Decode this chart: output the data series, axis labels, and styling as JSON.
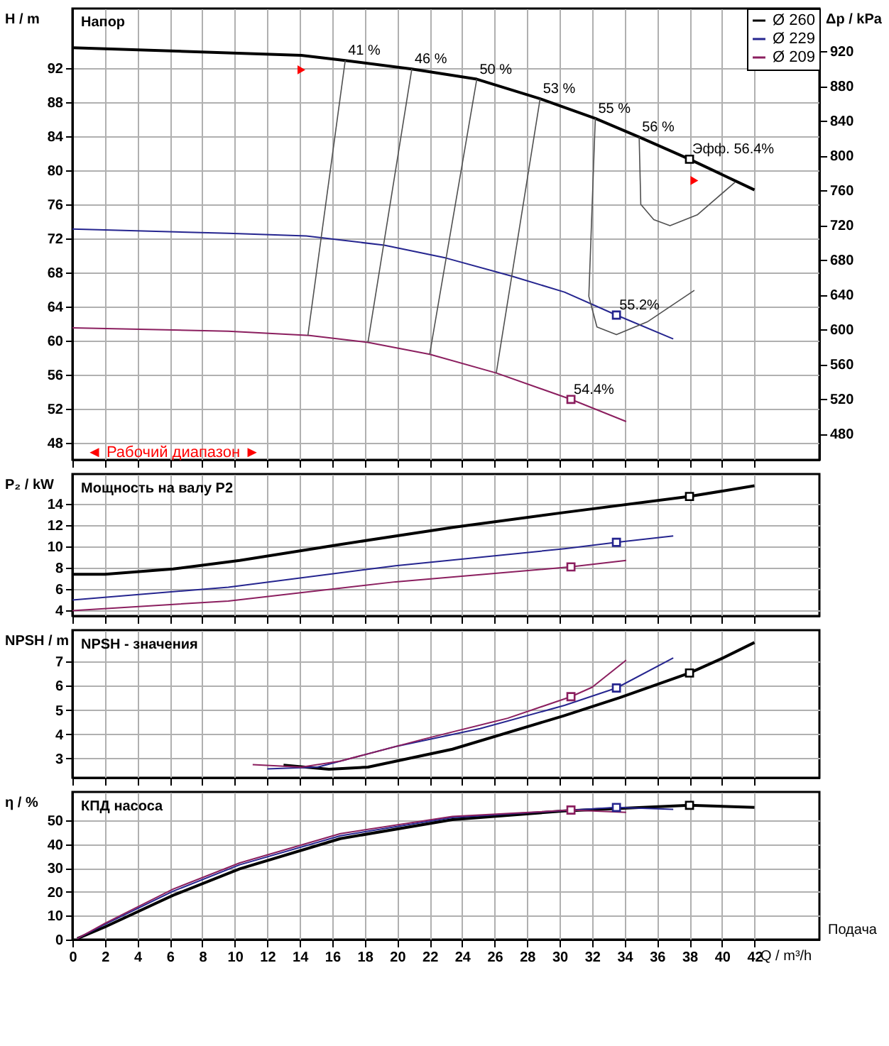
{
  "chart_data": [
    {
      "type": "line",
      "title": "Напор",
      "ylabel": "H / m",
      "y2label": "Δp / kPa",
      "xlim": [
        0,
        46
      ],
      "xticks": [
        0,
        2,
        4,
        6,
        8,
        10,
        12,
        14,
        16,
        18,
        20,
        22,
        24,
        26,
        28,
        30,
        32,
        34,
        36,
        38,
        40,
        42
      ],
      "ylim": [
        46,
        99
      ],
      "yticks": [
        48,
        52,
        56,
        60,
        64,
        68,
        72,
        76,
        80,
        84,
        88,
        92
      ],
      "y2lim": [
        450,
        969
      ],
      "y2ticks": [
        480,
        520,
        560,
        600,
        640,
        680,
        720,
        760,
        800,
        840,
        880,
        920
      ],
      "grid": true,
      "legend": "top right",
      "tick_labels": "y",
      "series": [
        {
          "name": "Ø 260",
          "color": "#000000",
          "x": [
            0,
            14.1,
            16.8,
            20.9,
            24.9,
            28.8,
            32.2,
            34.9,
            38.0,
            42.0
          ],
          "values": [
            94.4,
            93.5,
            92.9,
            91.9,
            90.7,
            88.4,
            86.1,
            83.9,
            81.3,
            77.7
          ]
        },
        {
          "name": "Ø 229",
          "color": "#25258f",
          "x": [
            0,
            9.6,
            14.4,
            19.2,
            23.0,
            27.0,
            30.3,
            33.5,
            37.0
          ],
          "values": [
            73.1,
            72.6,
            72.3,
            71.2,
            69.7,
            67.6,
            65.7,
            63.0,
            60.2
          ]
        },
        {
          "name": "Ø 209",
          "color": "#8b1f5f",
          "x": [
            0,
            9.6,
            14.6,
            18.2,
            22.0,
            26.1,
            30.7,
            34.1
          ],
          "values": [
            61.5,
            61.1,
            60.6,
            59.8,
            58.4,
            56.2,
            53.1,
            50.5
          ]
        },
        {
          "color": "#505050",
          "x": [
            16.8,
            14.5
          ],
          "values": [
            92.9,
            60.6
          ]
        },
        {
          "color": "#505050",
          "x": [
            20.9,
            18.2
          ],
          "values": [
            91.9,
            59.8
          ]
        },
        {
          "color": "#505050",
          "x": [
            24.9,
            22.0
          ],
          "values": [
            90.7,
            58.4
          ]
        },
        {
          "color": "#505050",
          "x": [
            28.8,
            26.1
          ],
          "values": [
            88.4,
            56.2
          ]
        },
        {
          "color": "#505050",
          "x": [
            32.2,
            31.8,
            32.3,
            33.5,
            35.4,
            38.3
          ],
          "values": [
            86.1,
            65.2,
            61.6,
            60.7,
            62.2,
            65.9
          ]
        },
        {
          "color": "#505050",
          "x": [
            34.9,
            35.0,
            35.8,
            36.8,
            38.5,
            40.8
          ],
          "values": [
            83.9,
            76.0,
            74.2,
            73.5,
            74.8,
            78.6
          ]
        },
        {
          "type": "scatter",
          "marker": "square",
          "color": "#000000",
          "x": [
            38.0
          ],
          "values": [
            81.3
          ]
        },
        {
          "type": "scatter",
          "marker": "square",
          "color": "#25258f",
          "x": [
            33.5
          ],
          "values": [
            63.0
          ]
        },
        {
          "type": "scatter",
          "marker": "square",
          "color": "#8b1f5f",
          "x": [
            30.7
          ],
          "values": [
            53.1
          ]
        },
        {
          "type": "scatter",
          "marker": "triangle",
          "color": "#ff0000",
          "x": [
            14.1,
            38.3
          ],
          "values": [
            91.8,
            78.8
          ]
        }
      ],
      "annotations": [
        {
          "text": "41 %",
          "x": 16.8,
          "y": 92.9
        },
        {
          "text": "46 %",
          "x": 20.9,
          "y": 91.9
        },
        {
          "text": "50 %",
          "x": 24.9,
          "y": 90.7
        },
        {
          "text": "53 %",
          "x": 28.8,
          "y": 88.4
        },
        {
          "text": "55 %",
          "x": 32.2,
          "y": 86.1
        },
        {
          "text": "56 %",
          "x": 34.9,
          "y": 83.9
        },
        {
          "text": "Эфф.  56.4%",
          "x": 38.0,
          "y": 81.3
        },
        {
          "text": "55.2%",
          "x": 33.5,
          "y": 63.0
        },
        {
          "text": "54.4%",
          "x": 30.7,
          "y": 53.1
        },
        "◄ Рабочий диапазон ►"
      ]
    },
    {
      "type": "line",
      "title": "Мощность на валу P2",
      "ylabel": "P₂ / kW",
      "xlim": [
        0,
        46
      ],
      "xticks": [
        0,
        2,
        4,
        6,
        8,
        10,
        12,
        14,
        16,
        18,
        20,
        22,
        24,
        26,
        28,
        30,
        32,
        34,
        36,
        38,
        40,
        42
      ],
      "ylim": [
        3.5,
        16.8
      ],
      "yticks": [
        4,
        6,
        8,
        10,
        12,
        14
      ],
      "grid": true,
      "tick_labels": "y",
      "series": [
        {
          "color": "#000000",
          "x": [
            0,
            2.0,
            6.2,
            10.3,
            16.5,
            23.4,
            30.3,
            38.0,
            42.0
          ],
          "values": [
            7.4,
            7.4,
            7.9,
            8.7,
            10.2,
            11.8,
            13.2,
            14.7,
            15.7
          ]
        },
        {
          "color": "#25258f",
          "x": [
            0,
            9.6,
            19.9,
            30.3,
            33.5,
            37.0
          ],
          "values": [
            5.0,
            6.2,
            8.2,
            9.8,
            10.4,
            11.0
          ]
        },
        {
          "color": "#8b1f5f",
          "x": [
            0,
            9.6,
            19.9,
            30.7,
            34.1
          ],
          "values": [
            4.0,
            4.9,
            6.7,
            8.1,
            8.7
          ]
        },
        {
          "type": "scatter",
          "marker": "square",
          "color": "#000000",
          "x": [
            38.0
          ],
          "values": [
            14.7
          ]
        },
        {
          "type": "scatter",
          "marker": "square",
          "color": "#25258f",
          "x": [
            33.5
          ],
          "values": [
            10.4
          ]
        },
        {
          "type": "scatter",
          "marker": "square",
          "color": "#8b1f5f",
          "x": [
            30.7
          ],
          "values": [
            8.1
          ]
        }
      ]
    },
    {
      "type": "line",
      "title": "NPSH - значения",
      "ylabel": "NPSH / m",
      "xlim": [
        0,
        46
      ],
      "xticks": [
        0,
        2,
        4,
        6,
        8,
        10,
        12,
        14,
        16,
        18,
        20,
        22,
        24,
        26,
        28,
        30,
        32,
        34,
        36,
        38,
        40,
        42
      ],
      "ylim": [
        2.2,
        8.3
      ],
      "yticks": [
        3,
        4,
        5,
        6,
        7
      ],
      "grid": true,
      "tick_labels": "y",
      "series": [
        {
          "color": "#000000",
          "x": [
            13.0,
            15.8,
            18.2,
            23.4,
            30.3,
            33.7,
            38.0,
            39.9,
            42.0
          ],
          "values": [
            2.72,
            2.55,
            2.64,
            3.38,
            4.77,
            5.51,
            6.53,
            7.1,
            7.79
          ]
        },
        {
          "color": "#25258f",
          "x": [
            12.0,
            15.1,
            19.9,
            25.1,
            30.3,
            33.5,
            37.0
          ],
          "values": [
            2.57,
            2.64,
            3.49,
            4.23,
            5.19,
            5.91,
            7.15
          ]
        },
        {
          "color": "#8b1f5f",
          "x": [
            11.1,
            14.1,
            16.5,
            21.7,
            26.8,
            30.7,
            32.0,
            34.1
          ],
          "values": [
            2.74,
            2.64,
            2.89,
            3.81,
            4.66,
            5.55,
            5.94,
            7.06
          ]
        },
        {
          "type": "scatter",
          "marker": "square",
          "color": "#000000",
          "x": [
            38.0
          ],
          "values": [
            6.53
          ]
        },
        {
          "type": "scatter",
          "marker": "square",
          "color": "#25258f",
          "x": [
            33.5
          ],
          "values": [
            5.91
          ]
        },
        {
          "type": "scatter",
          "marker": "square",
          "color": "#8b1f5f",
          "x": [
            30.7
          ],
          "values": [
            5.55
          ]
        }
      ]
    },
    {
      "type": "line",
      "title": "КПД насоса",
      "ylabel": "η / %",
      "xlabel": "Q / m³/h",
      "xlim": [
        0,
        46
      ],
      "xticks": [
        0,
        2,
        4,
        6,
        8,
        10,
        12,
        14,
        16,
        18,
        20,
        22,
        24,
        26,
        28,
        30,
        32,
        34,
        36,
        38,
        40,
        42
      ],
      "ylim": [
        0,
        62
      ],
      "yticks": [
        0,
        10,
        20,
        30,
        40,
        50
      ],
      "grid": true,
      "series": [
        {
          "color": "#000000",
          "x": [
            0.3,
            2.0,
            6.2,
            10.3,
            16.5,
            23.4,
            30.3,
            38.0,
            42.0
          ],
          "values": [
            0.4,
            5.3,
            18.6,
            29.7,
            42.4,
            50.4,
            54.0,
            56.4,
            55.5
          ]
        },
        {
          "color": "#25258f",
          "x": [
            0.3,
            2.0,
            6.2,
            10.3,
            16.5,
            23.4,
            30.3,
            33.5,
            37.0
          ],
          "values": [
            0.4,
            6.4,
            20.3,
            31.4,
            43.6,
            51.3,
            54.2,
            55.5,
            54.7
          ]
        },
        {
          "color": "#8b1f5f",
          "x": [
            0.3,
            2.0,
            6.2,
            10.3,
            16.5,
            23.4,
            30.7,
            34.1
          ],
          "values": [
            0.4,
            6.8,
            21.2,
            32.2,
            44.5,
            51.7,
            54.4,
            53.4
          ]
        },
        {
          "type": "scatter",
          "marker": "square",
          "color": "#000000",
          "x": [
            38.0
          ],
          "values": [
            56.4
          ]
        },
        {
          "type": "scatter",
          "marker": "square",
          "color": "#25258f",
          "x": [
            33.5
          ],
          "values": [
            55.5
          ]
        },
        {
          "type": "scatter",
          "marker": "square",
          "color": "#8b1f5f",
          "x": [
            30.7
          ],
          "values": [
            54.4
          ]
        }
      ],
      "annotations": [
        "Подача"
      ]
    }
  ]
}
